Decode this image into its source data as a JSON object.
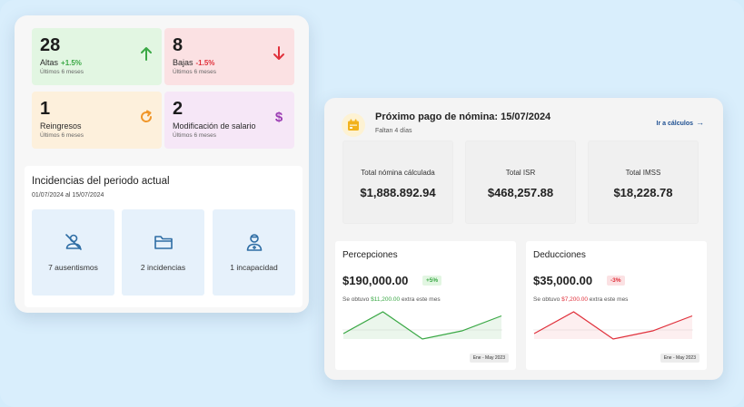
{
  "stats": {
    "altas": {
      "value": "28",
      "label": "Altas",
      "delta": "+1.5%",
      "sub": "Últimos 6 meses"
    },
    "bajas": {
      "value": "8",
      "label": "Bajas",
      "delta": "-1.5%",
      "sub": "Últimos 6 meses"
    },
    "reingresos": {
      "value": "1",
      "label": "Reingresos",
      "sub": "Últimos 6 meses"
    },
    "modificacion": {
      "value": "2",
      "label": "Modificación de salario",
      "sub": "Últimos 6 meses"
    }
  },
  "incidencias": {
    "title": "Incidencias del periodo actual",
    "dates": "01/07/2024 al 15/07/2024",
    "items": [
      {
        "label": "7 ausentismos",
        "icon": "person-off-icon"
      },
      {
        "label": "2 incidencias",
        "icon": "folder-icon"
      },
      {
        "label": "1 incapacidad",
        "icon": "medical-person-icon"
      }
    ]
  },
  "pago": {
    "title": "Próximo pago de nómina: 15/07/2024",
    "sub": "Faltan 4 días",
    "link": "Ir a cálculos"
  },
  "totales": [
    {
      "label": "Total nómina cálculada",
      "value": "$1,888.892.94"
    },
    {
      "label": "Total ISR",
      "value": "$468,257.88"
    },
    {
      "label": "Total IMSS",
      "value": "$18,228.78"
    }
  ],
  "percepciones": {
    "title": "Percepciones",
    "value": "$190,000.00",
    "badge": "+5%",
    "note_pre": "Se obtuvo ",
    "note_amount": "$11,200.00",
    "note_post": " extra este mes",
    "range": "Ene - May 2023",
    "spark": [
      0.2,
      1.0,
      0.0,
      0.3,
      0.85
    ]
  },
  "deducciones": {
    "title": "Deducciones",
    "value": "$35,000.00",
    "badge": "-3%",
    "note_pre": "Se obtuvo ",
    "note_amount": "$7,200.00",
    "note_post": " extra este mes",
    "range": "Ene - May 2023",
    "spark": [
      0.2,
      1.0,
      0.0,
      0.3,
      0.85
    ]
  },
  "colors": {
    "green": "#3aa845",
    "red": "#e0303b",
    "orange": "#f0962a",
    "purple": "#9b3cb3",
    "link": "#1d4f91",
    "icon_blue": "#2e6da4"
  }
}
